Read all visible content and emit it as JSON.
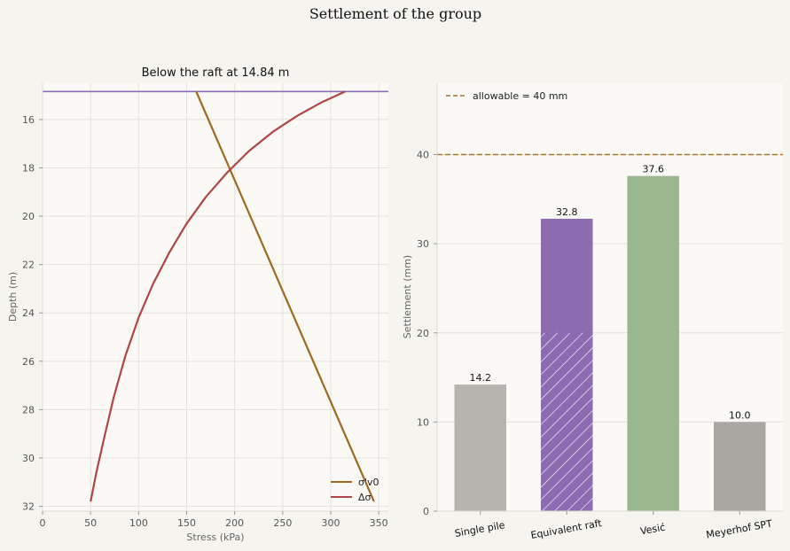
{
  "figure": {
    "title": "Settlement of the group"
  },
  "chart_data": [
    {
      "type": "line",
      "title": "Below the raft at 14.84 m",
      "xlabel": "Stress (kPa)",
      "ylabel": "Depth (m)",
      "xlim": [
        0,
        360
      ],
      "ylim": [
        32.2,
        14.5
      ],
      "y_inverted": true,
      "grid": true,
      "legend_position": "lower-right",
      "x_ticks": [
        "0",
        "50",
        "100",
        "150",
        "200",
        "250",
        "300",
        "350"
      ],
      "y_ticks": [
        "16",
        "18",
        "20",
        "22",
        "24",
        "26",
        "28",
        "30",
        "32"
      ],
      "reference_line": {
        "depth": 14.84,
        "color": "#8b6bb5"
      },
      "series": [
        {
          "name": "σ'v0",
          "color": "#a06a1c",
          "points": [
            [
              160,
              14.84
            ],
            [
              345,
              31.8
            ]
          ]
        },
        {
          "name": "Δσ",
          "color": "#b04545",
          "points": [
            [
              315,
              14.84
            ],
            [
              290,
              15.3
            ],
            [
              265,
              15.85
            ],
            [
              240,
              16.5
            ],
            [
              215,
              17.3
            ],
            [
              192,
              18.2
            ],
            [
              170,
              19.2
            ],
            [
              150,
              20.3
            ],
            [
              132,
              21.5
            ],
            [
              115,
              22.8
            ],
            [
              100,
              24.2
            ],
            [
              86,
              25.8
            ],
            [
              74,
              27.5
            ],
            [
              64,
              29.2
            ],
            [
              56,
              30.6
            ],
            [
              50,
              31.8
            ]
          ]
        }
      ]
    },
    {
      "type": "bar",
      "ylabel": "Settlement (mm)",
      "ylim": [
        0,
        48
      ],
      "grid": true,
      "y_ticks": [
        "0",
        "10",
        "20",
        "30",
        "40"
      ],
      "categories": [
        "Single pile",
        "Equivalent raft",
        "Vesić",
        "Meyerhof SPT"
      ],
      "values": [
        14.2,
        32.8,
        37.6,
        10.0
      ],
      "value_labels": [
        "14.2",
        "32.8",
        "37.6",
        "10.0"
      ],
      "colors": [
        "#b5b4ae",
        "#8c6bb1",
        "#9bb78e",
        "#a8a7a1"
      ],
      "hatched_portion": {
        "category": "Equivalent raft",
        "value": 20
      },
      "reference_line": {
        "value": 40,
        "label": "allowable = 40 mm",
        "color": "#a8762a",
        "style": "dashed"
      },
      "legend_position": "top-left"
    }
  ]
}
